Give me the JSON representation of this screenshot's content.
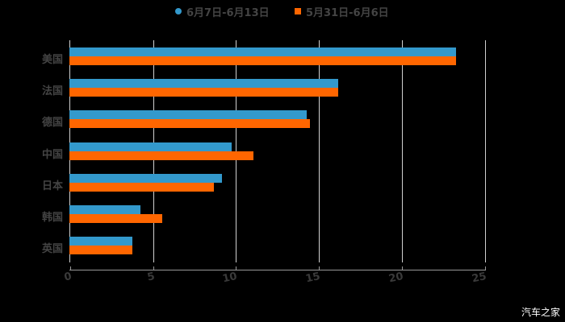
{
  "chart_data": {
    "type": "bar",
    "orientation": "horizontal",
    "title": "",
    "xlabel": "",
    "ylabel": "",
    "categories": [
      "美国",
      "法国",
      "德国",
      "中国",
      "日本",
      "韩国",
      "英国"
    ],
    "series": [
      {
        "name": "6月7日-6月13日",
        "color": "#3399cc",
        "values": [
          23.3,
          16.2,
          14.3,
          9.8,
          9.2,
          4.3,
          3.8
        ]
      },
      {
        "name": "5月31日-6月6日",
        "color": "#ff6600",
        "values": [
          23.3,
          16.2,
          14.5,
          11.1,
          8.7,
          5.6,
          3.8
        ]
      }
    ],
    "xlim": [
      0,
      25
    ],
    "xticks": [
      "0",
      "5",
      "10",
      "15",
      "20",
      "25"
    ],
    "grid": true,
    "legend_position": "top"
  },
  "legend": [
    {
      "label": "6月7日-6月13日",
      "color": "#3399cc"
    },
    {
      "label": "5月31日-6月6日",
      "color": "#ff6600"
    }
  ],
  "watermark": "汽车之家"
}
